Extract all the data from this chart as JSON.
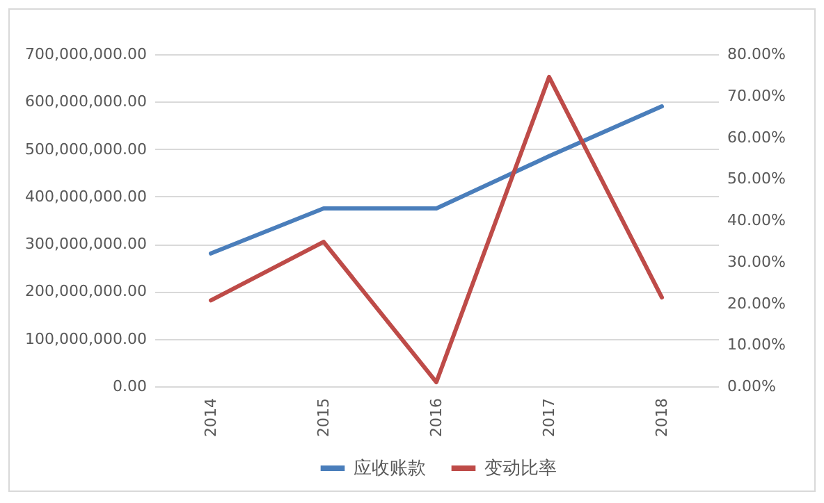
{
  "chart_data": {
    "type": "line",
    "categories": [
      "2014",
      "2015",
      "2016",
      "2017",
      "2018"
    ],
    "series": [
      {
        "name": "应收账款",
        "color": "#4a7ebb",
        "values": [
          280000000,
          375000000,
          375000000,
          485000000,
          590000000
        ]
      },
      {
        "name": "变动比率",
        "color": "#be4b48",
        "axis": "y2",
        "values": [
          20.7,
          34.8,
          1,
          74.5,
          21.4
        ]
      }
    ],
    "ylim": [
      0,
      700000000
    ],
    "yticks": [
      {
        "value": 0,
        "label": "0.00"
      },
      {
        "value": 100000000,
        "label": "100,000,000.00"
      },
      {
        "value": 200000000,
        "label": "200,000,000.00"
      },
      {
        "value": 300000000,
        "label": "300,000,000.00"
      },
      {
        "value": 400000000,
        "label": "400,000,000.00"
      },
      {
        "value": 500000000,
        "label": "500,000,000.00"
      },
      {
        "value": 600000000,
        "label": "600,000,000.00"
      },
      {
        "value": 700000000,
        "label": "700,000,000.00"
      }
    ],
    "y2lim": [
      0,
      80
    ],
    "y2ticks": [
      {
        "value": 0,
        "label": "0.00%"
      },
      {
        "value": 10,
        "label": "10.00%"
      },
      {
        "value": 20,
        "label": "20.00%"
      },
      {
        "value": 30,
        "label": "30.00%"
      },
      {
        "value": 40,
        "label": "40.00%"
      },
      {
        "value": 50,
        "label": "50.00%"
      },
      {
        "value": 60,
        "label": "60.00%"
      },
      {
        "value": 70,
        "label": "70.00%"
      },
      {
        "value": 80,
        "label": "80.00%"
      }
    ],
    "grid": "y",
    "legend": "bottom",
    "marker": "none",
    "line_style": "solid"
  }
}
